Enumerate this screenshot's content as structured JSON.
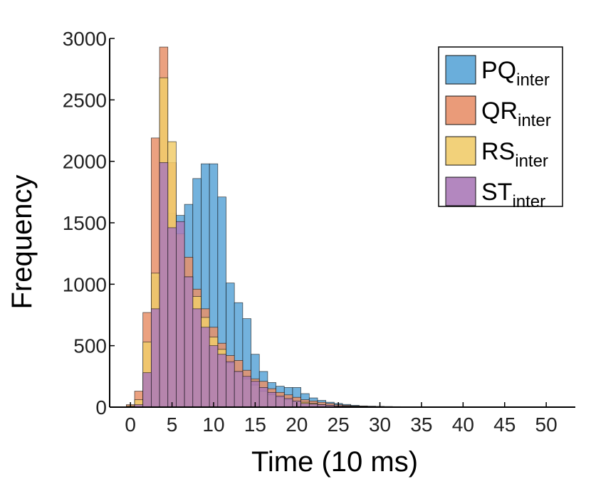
{
  "chart_data": {
    "type": "bar",
    "bin_width": 1,
    "xlabel": "Time (10 ms)",
    "ylabel": "Frequency",
    "xlim": [
      -2.5,
      53.5
    ],
    "ylim": [
      0,
      3000
    ],
    "xticks": [
      0,
      5,
      10,
      15,
      20,
      25,
      30,
      35,
      40,
      45,
      50
    ],
    "yticks": [
      0,
      500,
      1000,
      1500,
      2000,
      2500,
      3000
    ],
    "grid": false,
    "legend_position": "top-right",
    "bin_centers": [
      0,
      1,
      2,
      3,
      4,
      5,
      6,
      7,
      8,
      9,
      10,
      11,
      12,
      13,
      14,
      15,
      16,
      17,
      18,
      19,
      20,
      21,
      22,
      23,
      24,
      25,
      26,
      27,
      28,
      29,
      30,
      31,
      32,
      33,
      34,
      35,
      36,
      37,
      38,
      39,
      40,
      41,
      42,
      43,
      44,
      45,
      46,
      47,
      48,
      49,
      50
    ],
    "series": [
      {
        "name": "PQ",
        "name_sub": "inter",
        "color": "#5aa5d7",
        "values": [
          0,
          10,
          280,
          1060,
          1510,
          1580,
          1560,
          1650,
          1860,
          1980,
          1980,
          1710,
          1010,
          850,
          720,
          430,
          290,
          200,
          170,
          160,
          160,
          110,
          75,
          55,
          40,
          30,
          22,
          15,
          10,
          8,
          6,
          5,
          4,
          3,
          3,
          2,
          2,
          2,
          1,
          1,
          1,
          1,
          1,
          1,
          0,
          0,
          0,
          0,
          0,
          0,
          0
        ]
      },
      {
        "name": "QR",
        "name_sub": "inter",
        "color": "#e8906a",
        "values": [
          20,
          130,
          770,
          2190,
          2930,
          1990,
          1400,
          1220,
          960,
          800,
          650,
          520,
          420,
          380,
          300,
          230,
          210,
          150,
          120,
          100,
          80,
          60,
          50,
          40,
          30,
          20,
          15,
          10,
          8,
          6,
          5,
          4,
          3,
          2,
          2,
          1,
          1,
          1,
          0,
          0,
          0,
          0,
          0,
          0,
          0,
          0,
          0,
          0,
          0,
          0,
          0
        ]
      },
      {
        "name": "RS",
        "name_sub": "inter",
        "color": "#f1cc6b",
        "values": [
          10,
          60,
          530,
          1090,
          2680,
          2160,
          1410,
          1060,
          900,
          730,
          570,
          470,
          360,
          290,
          230,
          180,
          130,
          100,
          80,
          60,
          50,
          40,
          30,
          20,
          15,
          10,
          8,
          6,
          4,
          3,
          2,
          2,
          1,
          1,
          1,
          0,
          0,
          0,
          0,
          0,
          0,
          0,
          0,
          0,
          0,
          0,
          0,
          0,
          0,
          0,
          0
        ]
      },
      {
        "name": "ST",
        "name_sub": "inter",
        "color": "#ab7ab8",
        "values": [
          0,
          20,
          280,
          800,
          1990,
          1460,
          1510,
          1060,
          800,
          650,
          500,
          430,
          370,
          290,
          250,
          210,
          160,
          120,
          90,
          70,
          50,
          30,
          25,
          20,
          15,
          10,
          8,
          6,
          4,
          3,
          2,
          2,
          1,
          1,
          1,
          0,
          0,
          0,
          0,
          0,
          0,
          0,
          0,
          0,
          0,
          0,
          0,
          0,
          0,
          0,
          0
        ]
      }
    ]
  }
}
